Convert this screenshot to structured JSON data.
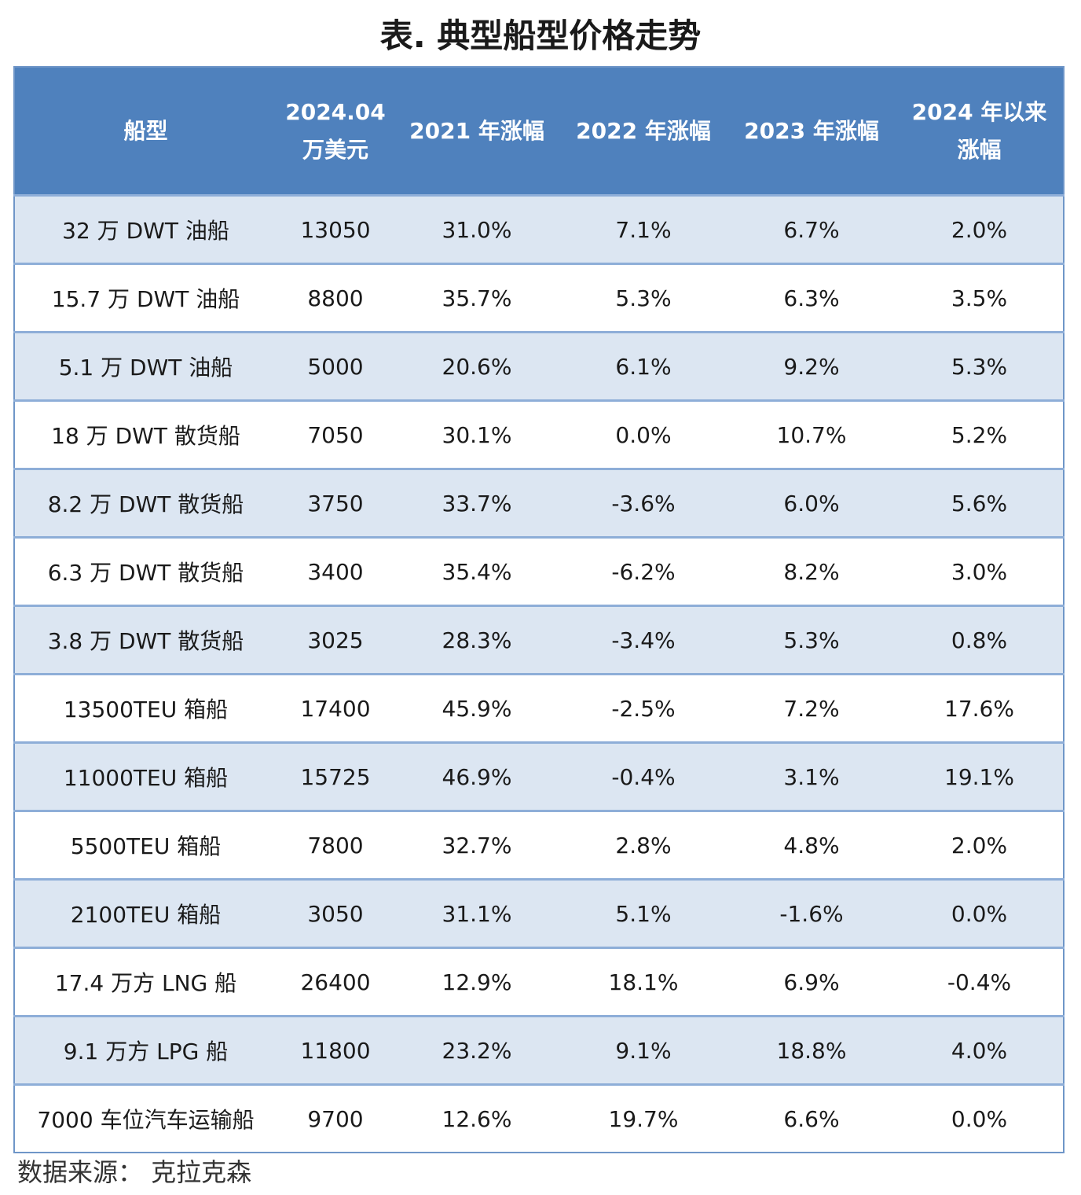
{
  "title": "表. 典型船型价格走势",
  "table": {
    "header": [
      [
        "船型"
      ],
      [
        "2024.04",
        "万美元"
      ],
      [
        "2021 年涨幅"
      ],
      [
        "2022 年涨幅"
      ],
      [
        "2023 年涨幅"
      ],
      [
        "2024 年以来",
        "涨幅"
      ]
    ],
    "rows": [
      [
        "32 万 DWT 油船",
        "13050",
        "31.0%",
        "7.1%",
        "6.7%",
        "2.0%"
      ],
      [
        "15.7 万 DWT 油船",
        "8800",
        "35.7%",
        "5.3%",
        "6.3%",
        "3.5%"
      ],
      [
        "5.1 万 DWT 油船",
        "5000",
        "20.6%",
        "6.1%",
        "9.2%",
        "5.3%"
      ],
      [
        "18 万 DWT 散货船",
        "7050",
        "30.1%",
        "0.0%",
        "10.7%",
        "5.2%"
      ],
      [
        "8.2 万 DWT 散货船",
        "3750",
        "33.7%",
        "-3.6%",
        "6.0%",
        "5.6%"
      ],
      [
        "6.3 万 DWT 散货船",
        "3400",
        "35.4%",
        "-6.2%",
        "8.2%",
        "3.0%"
      ],
      [
        "3.8 万 DWT 散货船",
        "3025",
        "28.3%",
        "-3.4%",
        "5.3%",
        "0.8%"
      ],
      [
        "13500TEU 箱船",
        "17400",
        "45.9%",
        "-2.5%",
        "7.2%",
        "17.6%"
      ],
      [
        "11000TEU 箱船",
        "15725",
        "46.9%",
        "-0.4%",
        "3.1%",
        "19.1%"
      ],
      [
        "5500TEU 箱船",
        "7800",
        "32.7%",
        "2.8%",
        "4.8%",
        "2.0%"
      ],
      [
        "2100TEU 箱船",
        "3050",
        "31.1%",
        "5.1%",
        "-1.6%",
        "0.0%"
      ],
      [
        "17.4 万方 LNG 船",
        "26400",
        "12.9%",
        "18.1%",
        "6.9%",
        "-0.4%"
      ],
      [
        "9.1 万方 LPG 船",
        "11800",
        "23.2%",
        "9.1%",
        "18.8%",
        "4.0%"
      ],
      [
        "7000 车位汽车运输船",
        "9700",
        "12.6%",
        "19.7%",
        "6.6%",
        "0.0%"
      ]
    ]
  },
  "source": "数据来源：  克拉克森"
}
